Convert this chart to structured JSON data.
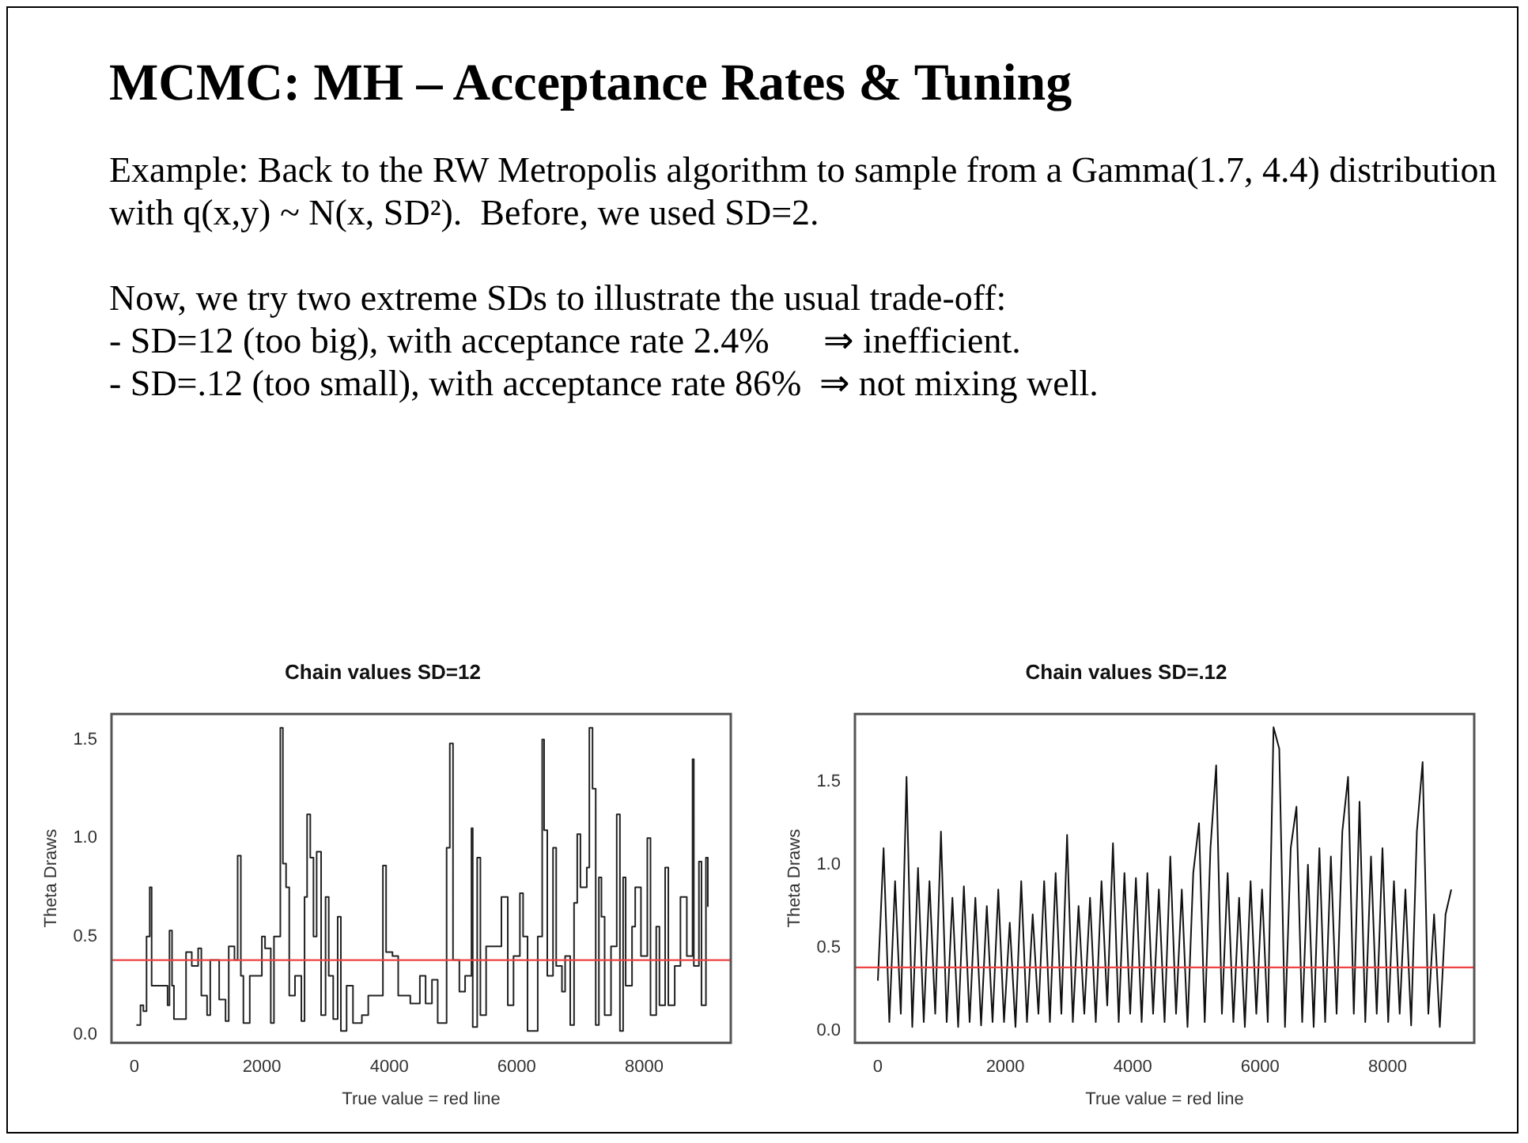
{
  "chart_data": [
    {
      "type": "other",
      "title": "MCMC: MH – Acceptance Rates & Tuning",
      "annotations": [
        "Example: Back to the RW Metropolis algorithm to sample from a Gamma(1.7, 4.4) distribution with q(x,y) ~ N(x, SD²).  Before, we used SD=2.",
        "Now, we try two extreme SDs to illustrate the usual trade-off:",
        "- SD=12 (too big), with acceptance rate 2.4%      ⇒ inefficient.",
        "- SD=.12 (too small), with acceptance rate 86%  ⇒ not mixing well."
      ]
    },
    {
      "type": "step",
      "title": "Chain values SD=12",
      "xlabel": "True value = red line",
      "ylabel": "Theta Draws",
      "xlim": [
        -360,
        9360
      ],
      "ylim": [
        -0.04,
        1.63
      ],
      "xticks": [
        0,
        2000,
        4000,
        6000,
        8000
      ],
      "yticks": [
        {
          "value": 0,
          "label": "0.0"
        },
        {
          "value": 0.5,
          "label": "0.5"
        },
        {
          "value": 1,
          "label": "1.0"
        },
        {
          "value": 1.5,
          "label": "1.5"
        }
      ],
      "grid": false,
      "legend": false,
      "marker": "none",
      "ref_lines": [
        {
          "axis": "y",
          "value": 0.38,
          "color": "#ee4444"
        }
      ],
      "series": [
        {
          "color": "#222222",
          "x": [
            30,
            95,
            140,
            190,
            240,
            270,
            520,
            550,
            590,
            620,
            810,
            900,
            1000,
            1050,
            1140,
            1190,
            1330,
            1430,
            1480,
            1570,
            1620,
            1670,
            1710,
            1810,
            2000,
            2050,
            2140,
            2190,
            2290,
            2330,
            2380,
            2430,
            2520,
            2620,
            2670,
            2710,
            2760,
            2810,
            2860,
            2930,
            3000,
            3050,
            3120,
            3190,
            3240,
            3330,
            3430,
            3570,
            3670,
            3900,
            3950,
            4050,
            4140,
            4330,
            4480,
            4570,
            4670,
            4760,
            4900,
            4950,
            5000,
            5100,
            5190,
            5290,
            5310,
            5380,
            5430,
            5520,
            5760,
            5860,
            5950,
            6050,
            6100,
            6170,
            6330,
            6400,
            6430,
            6480,
            6570,
            6620,
            6710,
            6760,
            6840,
            6900,
            6950,
            7000,
            7100,
            7140,
            7190,
            7240,
            7290,
            7330,
            7380,
            7480,
            7570,
            7620,
            7670,
            7710,
            7810,
            7860,
            7950,
            8050,
            8100,
            8190,
            8240,
            8330,
            8380,
            8480,
            8570,
            8670,
            8760,
            8780,
            8860,
            8900,
            8970,
            9000
          ],
          "values": [
            0.05,
            0.15,
            0.12,
            0.5,
            0.75,
            0.25,
            0.15,
            0.53,
            0.25,
            0.08,
            0.42,
            0.35,
            0.44,
            0.2,
            0.1,
            0.38,
            0.18,
            0.07,
            0.45,
            0.38,
            0.91,
            0.3,
            0.06,
            0.3,
            0.5,
            0.44,
            0.06,
            0.5,
            1.56,
            0.87,
            0.75,
            0.2,
            0.3,
            0.07,
            0.7,
            1.12,
            0.9,
            0.5,
            0.93,
            0.1,
            0.7,
            0.3,
            0.08,
            0.6,
            0.02,
            0.25,
            0.06,
            0.1,
            0.2,
            0.86,
            0.42,
            0.4,
            0.2,
            0.16,
            0.3,
            0.16,
            0.28,
            0.06,
            0.95,
            1.48,
            0.38,
            0.22,
            0.3,
            1.05,
            0.04,
            0.9,
            0.1,
            0.45,
            0.7,
            0.15,
            0.4,
            0.72,
            0.5,
            0.02,
            0.5,
            1.5,
            1.04,
            0.3,
            0.95,
            0.35,
            0.22,
            0.4,
            0.05,
            0.67,
            1.02,
            0.75,
            0.85,
            1.56,
            1.25,
            0.05,
            0.8,
            0.6,
            0.1,
            0.45,
            1.12,
            0.02,
            0.8,
            0.25,
            0.55,
            0.75,
            0.4,
            1.0,
            0.1,
            0.55,
            0.15,
            0.85,
            0.15,
            0.35,
            0.7,
            0.4,
            1.4,
            0.35,
            0.88,
            0.15,
            0.9,
            0.65
          ]
        }
      ]
    },
    {
      "type": "line",
      "title": "Chain values SD=.12",
      "xlabel": "True value = red line",
      "ylabel": "Theta Draws",
      "xlim": [
        -360,
        9360
      ],
      "ylim": [
        -0.075,
        1.91
      ],
      "xticks": [
        0,
        2000,
        4000,
        6000,
        8000
      ],
      "yticks": [
        {
          "value": 0,
          "label": "0.0"
        },
        {
          "value": 0.5,
          "label": "0.5"
        },
        {
          "value": 1,
          "label": "1.0"
        },
        {
          "value": 1.5,
          "label": "1.5"
        }
      ],
      "grid": false,
      "legend": false,
      "marker": "none",
      "ref_lines": [
        {
          "axis": "y",
          "value": 0.38,
          "color": "#ee4444"
        }
      ],
      "series": [
        {
          "color": "#111111",
          "x": [
            0,
            90,
            180,
            270,
            360,
            450,
            540,
            630,
            720,
            810,
            900,
            990,
            1080,
            1170,
            1260,
            1350,
            1440,
            1530,
            1620,
            1710,
            1800,
            1890,
            1980,
            2070,
            2160,
            2250,
            2340,
            2430,
            2520,
            2610,
            2700,
            2790,
            2880,
            2970,
            3060,
            3150,
            3240,
            3330,
            3420,
            3510,
            3600,
            3690,
            3780,
            3870,
            3960,
            4050,
            4140,
            4230,
            4320,
            4410,
            4500,
            4590,
            4680,
            4770,
            4860,
            4950,
            5040,
            5130,
            5220,
            5310,
            5400,
            5490,
            5580,
            5670,
            5760,
            5850,
            5940,
            6030,
            6120,
            6210,
            6300,
            6390,
            6480,
            6570,
            6660,
            6750,
            6840,
            6930,
            7020,
            7110,
            7200,
            7290,
            7380,
            7470,
            7560,
            7650,
            7740,
            7830,
            7920,
            8010,
            8100,
            8190,
            8280,
            8370,
            8460,
            8550,
            8640,
            8730,
            8820,
            8910,
            9000
          ],
          "values": [
            0.3,
            1.1,
            0.05,
            0.9,
            0.1,
            1.53,
            0.02,
            0.98,
            0.05,
            0.9,
            0.1,
            1.2,
            0.05,
            0.8,
            0.02,
            0.87,
            0.05,
            0.8,
            0.03,
            0.75,
            0.05,
            0.85,
            0.05,
            0.65,
            0.02,
            0.9,
            0.05,
            0.7,
            0.1,
            0.9,
            0.05,
            0.95,
            0.1,
            1.18,
            0.05,
            0.75,
            0.1,
            0.8,
            0.05,
            0.9,
            0.15,
            1.13,
            0.05,
            0.95,
            0.1,
            0.92,
            0.05,
            0.95,
            0.1,
            0.85,
            0.05,
            1.05,
            0.1,
            0.85,
            0.02,
            0.95,
            1.25,
            0.05,
            1.1,
            1.6,
            0.1,
            0.95,
            0.05,
            0.8,
            0.02,
            0.9,
            0.1,
            0.85,
            0.05,
            1.83,
            1.7,
            0.02,
            1.1,
            1.35,
            0.05,
            1.0,
            0.02,
            1.1,
            0.05,
            1.05,
            0.1,
            1.2,
            1.53,
            0.1,
            1.38,
            0.05,
            1.05,
            0.1,
            1.1,
            0.05,
            0.9,
            0.1,
            0.85,
            0.03,
            1.2,
            1.62,
            0.1,
            0.7,
            0.02,
            0.7,
            0.85
          ]
        }
      ]
    }
  ]
}
